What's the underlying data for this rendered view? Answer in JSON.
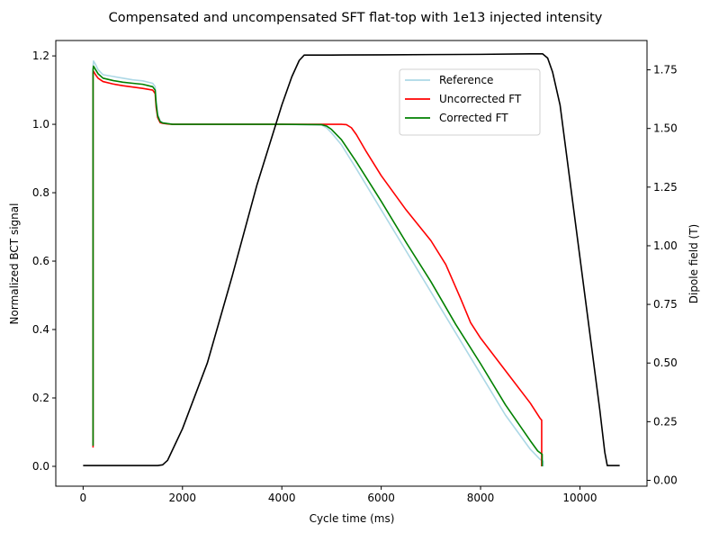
{
  "chart_data": {
    "type": "line",
    "title": "Compensated and uncompensated SFT flat-top with 1e13 injected intensity",
    "xlabel": "Cycle time (ms)",
    "ylabel": "Normalized BCT signal",
    "y2label": "Dipole field (T)",
    "xlim": [
      -550,
      11350
    ],
    "ylim": [
      -0.058,
      1.245
    ],
    "y2lim": [
      -0.025,
      1.875
    ],
    "x_ticks": [
      0,
      2000,
      4000,
      6000,
      8000,
      10000
    ],
    "x_tick_labels": [
      "0",
      "2000",
      "4000",
      "6000",
      "8000",
      "10000"
    ],
    "y_ticks": [
      0.0,
      0.2,
      0.4,
      0.6,
      0.8,
      1.0,
      1.2
    ],
    "y_tick_labels": [
      "0.0",
      "0.2",
      "0.4",
      "0.6",
      "0.8",
      "1.0",
      "1.2"
    ],
    "y2_ticks": [
      0.0,
      0.25,
      0.5,
      0.75,
      1.0,
      1.25,
      1.5,
      1.75
    ],
    "y2_tick_labels": [
      "0.00",
      "0.25",
      "0.50",
      "0.75",
      "1.00",
      "1.25",
      "1.50",
      "1.75"
    ],
    "legend_position": "upper-right",
    "series": [
      {
        "name": "Reference",
        "axis": "left",
        "color": "#add8e6",
        "x": [
          200,
          200,
          210,
          250,
          300,
          400,
          600,
          800,
          1000,
          1200,
          1400,
          1450,
          1470,
          1500,
          1550,
          1600,
          1700,
          1800,
          2000,
          3000,
          4000,
          4800,
          4900,
          5000,
          5200,
          5500,
          6000,
          6500,
          7000,
          7500,
          8000,
          8500,
          9000,
          9200,
          9260,
          9260
        ],
        "y": [
          0.06,
          1.17,
          1.185,
          1.175,
          1.16,
          1.145,
          1.14,
          1.135,
          1.13,
          1.127,
          1.12,
          1.11,
          1.07,
          1.03,
          1.01,
          1.005,
          1.002,
          1.0,
          1.0,
          1.0,
          1.0,
          0.998,
          0.99,
          0.975,
          0.94,
          0.87,
          0.75,
          0.63,
          0.51,
          0.39,
          0.27,
          0.15,
          0.05,
          0.02,
          0.015,
          0.0
        ]
      },
      {
        "name": "Uncorrected FT",
        "axis": "left",
        "color": "#ff0000",
        "x": [
          200,
          200,
          210,
          250,
          300,
          400,
          600,
          800,
          1000,
          1200,
          1400,
          1450,
          1470,
          1500,
          1550,
          1600,
          1700,
          1800,
          2000,
          3000,
          4000,
          5000,
          5200,
          5300,
          5400,
          5500,
          5700,
          6000,
          6500,
          7000,
          7300,
          7600,
          7800,
          8000,
          8500,
          9000,
          9200,
          9230,
          9230
        ],
        "y": [
          0.055,
          1.15,
          1.155,
          1.145,
          1.135,
          1.125,
          1.118,
          1.113,
          1.109,
          1.105,
          1.1,
          1.09,
          1.05,
          1.02,
          1.005,
          1.003,
          1.001,
          1.0,
          1.0,
          1.0,
          1.0,
          1.0,
          1.0,
          0.999,
          0.99,
          0.97,
          0.92,
          0.85,
          0.75,
          0.66,
          0.59,
          0.49,
          0.42,
          0.375,
          0.28,
          0.185,
          0.14,
          0.135,
          0.0
        ]
      },
      {
        "name": "Corrected FT",
        "axis": "left",
        "color": "#008000",
        "x": [
          200,
          200,
          210,
          250,
          300,
          400,
          600,
          800,
          1000,
          1200,
          1400,
          1450,
          1470,
          1500,
          1550,
          1600,
          1700,
          1800,
          2000,
          3000,
          4000,
          4800,
          4900,
          5000,
          5200,
          5500,
          6000,
          6500,
          7000,
          7500,
          8000,
          8500,
          9000,
          9150,
          9240,
          9240
        ],
        "y": [
          0.06,
          1.16,
          1.17,
          1.16,
          1.148,
          1.135,
          1.128,
          1.123,
          1.12,
          1.117,
          1.11,
          1.1,
          1.06,
          1.025,
          1.008,
          1.004,
          1.002,
          1.0,
          1.0,
          1.0,
          1.0,
          0.999,
          0.995,
          0.985,
          0.955,
          0.89,
          0.775,
          0.655,
          0.54,
          0.415,
          0.3,
          0.18,
          0.075,
          0.045,
          0.035,
          0.0
        ]
      },
      {
        "name": "",
        "axis": "right",
        "color": "#000000",
        "x": [
          0,
          1500,
          1600,
          1700,
          1800,
          2000,
          2500,
          3000,
          3500,
          4000,
          4200,
          4350,
          4450,
          5000,
          6000,
          7000,
          8000,
          9000,
          9250,
          9350,
          9450,
          9600,
          10000,
          10400,
          10500,
          10550,
          10800
        ],
        "y": [
          0.063,
          0.063,
          0.066,
          0.085,
          0.13,
          0.22,
          0.5,
          0.87,
          1.26,
          1.6,
          1.72,
          1.79,
          1.813,
          1.813,
          1.814,
          1.815,
          1.816,
          1.818,
          1.818,
          1.8,
          1.74,
          1.6,
          0.95,
          0.3,
          0.12,
          0.063,
          0.063
        ]
      }
    ]
  }
}
